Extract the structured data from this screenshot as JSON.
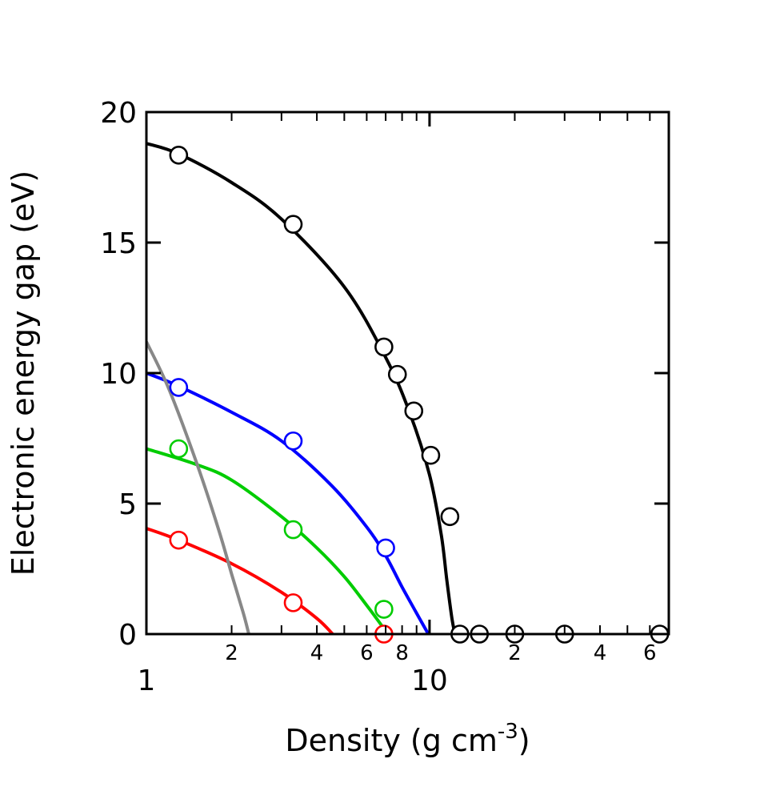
{
  "chart_data": {
    "type": "scatter",
    "xlabel": "Density (g cm",
    "xlabel_superscript": "-3",
    "xlabel_close": ")",
    "ylabel": "Electronic energy gap (eV)",
    "xscale": "log",
    "xlim": [
      1,
      70
    ],
    "ylim": [
      0,
      20
    ],
    "grid": false,
    "y_ticks": [
      {
        "value": 0,
        "label": "0"
      },
      {
        "value": 5,
        "label": "5"
      },
      {
        "value": 10,
        "label": "10"
      },
      {
        "value": 15,
        "label": "15"
      },
      {
        "value": 20,
        "label": "20"
      }
    ],
    "x_major_ticks": [
      {
        "value": 1,
        "label": "1"
      },
      {
        "value": 10,
        "label": "10"
      }
    ],
    "x_minor_labels": [
      {
        "value": 2,
        "label": "2"
      },
      {
        "value": 4,
        "label": "4"
      },
      {
        "value": 6,
        "label": "6"
      },
      {
        "value": 8,
        "label": "8"
      },
      {
        "value": 20,
        "label": "2"
      },
      {
        "value": 40,
        "label": "4"
      },
      {
        "value": 60,
        "label": "6"
      }
    ],
    "series": [
      {
        "color": "#000000",
        "curve": {
          "x": [
            1.0,
            1.3,
            2.0,
            3.0,
            5.0,
            7.0,
            8.5,
            10.0,
            11.0,
            11.5,
            12.0,
            12.3
          ],
          "y": [
            18.8,
            18.4,
            17.3,
            15.9,
            13.3,
            10.6,
            8.5,
            6.1,
            3.8,
            2.1,
            0.6,
            0.0
          ]
        },
        "points": {
          "x": [
            1.3,
            3.3,
            6.9,
            7.7,
            8.8,
            10.1,
            11.8,
            12.8,
            15.0,
            20.0,
            30.0,
            65.0
          ],
          "y": [
            18.35,
            15.7,
            11.0,
            9.95,
            8.55,
            6.85,
            4.5,
            0.0,
            0.0,
            0.0,
            0.0,
            0.0
          ]
        }
      },
      {
        "color": "#0000ff",
        "curve": {
          "x": [
            1.0,
            1.3,
            2.0,
            3.0,
            4.5,
            6.0,
            7.0,
            8.0,
            9.0,
            9.9
          ],
          "y": [
            10.0,
            9.5,
            8.5,
            7.4,
            5.7,
            4.1,
            3.0,
            1.8,
            0.8,
            0.0
          ]
        },
        "points": {
          "x": [
            1.3,
            3.3,
            7.0
          ],
          "y": [
            9.45,
            7.4,
            3.3
          ]
        }
      },
      {
        "color": "#00cc00",
        "curve": {
          "x": [
            1.0,
            1.5,
            2.0,
            3.0,
            4.0,
            5.0,
            6.0,
            6.7,
            7.1
          ],
          "y": [
            7.1,
            6.5,
            5.9,
            4.5,
            3.3,
            2.2,
            1.1,
            0.4,
            0.0
          ]
        },
        "points": {
          "x": [
            1.3,
            3.3,
            6.9
          ],
          "y": [
            7.1,
            4.0,
            0.95
          ]
        }
      },
      {
        "color": "#ff0000",
        "curve": {
          "x": [
            1.0,
            1.3,
            2.0,
            3.0,
            4.0,
            4.55
          ],
          "y": [
            4.05,
            3.6,
            2.7,
            1.6,
            0.6,
            0.0
          ]
        },
        "points": {
          "x": [
            1.3,
            3.3,
            6.9
          ],
          "y": [
            3.6,
            1.2,
            0.0
          ]
        }
      },
      {
        "color": "#888888",
        "curve": {
          "x": [
            1.0,
            1.2,
            1.5,
            1.8,
            2.0,
            2.2,
            2.3
          ],
          "y": [
            11.2,
            9.4,
            6.6,
            4.0,
            2.3,
            0.8,
            0.0
          ]
        }
      }
    ]
  }
}
